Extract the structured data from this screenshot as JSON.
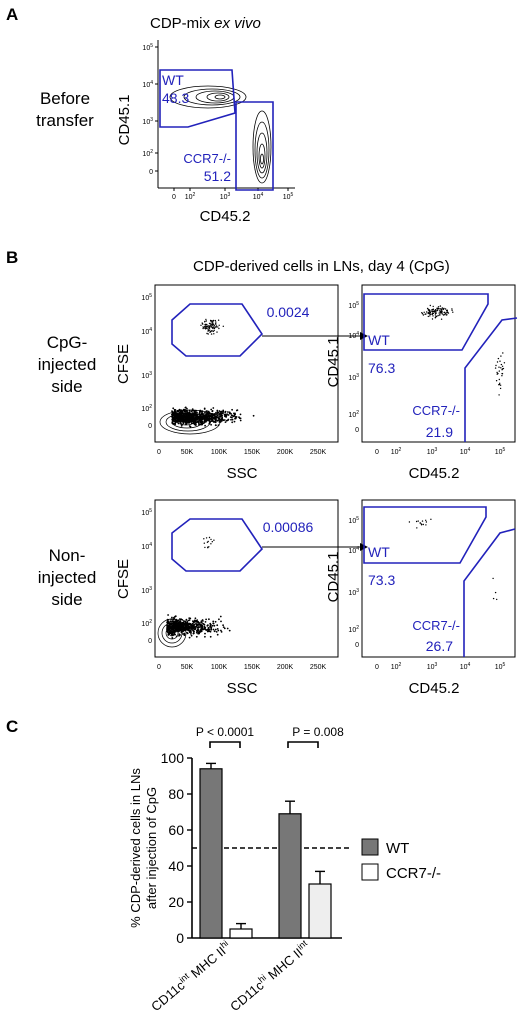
{
  "panelA": {
    "letter": "A",
    "title": "CDP-mix ",
    "title_italic": "ex vivo",
    "row_label_line1": "Before",
    "row_label_line2": "transfer",
    "ylabel": "CD45.1",
    "xlabel": "CD45.2",
    "gate_wt_label": "WT",
    "gate_wt_value": "48.3",
    "gate_ko_label": "CCR7-/-",
    "gate_ko_value": "51.2"
  },
  "panelB": {
    "letter": "B",
    "title": "CDP-derived cells in LNs, day 4 (CpG)",
    "row1_line1": "CpG-",
    "row1_line2": "injected",
    "row1_line3": "side",
    "row2_line1": "Non-",
    "row2_line2": "injected",
    "row2_line3": "side",
    "left_ylabel": "CFSE",
    "left_xlabel": "SSC",
    "right_ylabel": "CD45.1",
    "right_xlabel": "CD45.2",
    "row1_gate_value": "0.0024",
    "row1_wt_label": "WT",
    "row1_wt_value": "76.3",
    "row1_ko_label": "CCR7-/-",
    "row1_ko_value": "21.9",
    "row2_gate_value": "0.00086",
    "row2_wt_label": "WT",
    "row2_wt_value": "73.3",
    "row2_ko_label": "CCR7-/-",
    "row2_ko_value": "26.7"
  },
  "axis_ticks": {
    "log_y": [
      "10^5",
      "10^4",
      "10^3",
      "10^2",
      "0"
    ],
    "log_x": [
      "0",
      "10^2",
      "10^3",
      "10^4",
      "10^5"
    ],
    "ssc_x": [
      "0",
      "50K",
      "100K",
      "150K",
      "200K",
      "250K"
    ]
  },
  "panelC": {
    "letter": "C",
    "pval1": "P < 0.0001",
    "pval2": "P = 0.008",
    "legend_wt": "WT",
    "legend_ko": "CCR7-/-",
    "colors": {
      "wt": "#777777",
      "ko": "#ffffff",
      "ko_light": "#eeeeee"
    }
  },
  "chart_data": {
    "type": "bar",
    "categories": [
      "CD11c^int MHC II^hi",
      "CD11c^hi MHC II^int"
    ],
    "series": [
      {
        "name": "WT",
        "values": [
          94,
          69
        ],
        "errors": [
          3,
          7
        ]
      },
      {
        "name": "CCR7-/-",
        "values": [
          5,
          30
        ],
        "errors": [
          3,
          7
        ]
      }
    ],
    "ylabel": "% CDP-derived cells in LNs after injection of CpG",
    "ylim": [
      0,
      100
    ],
    "yticks": [
      0,
      20,
      40,
      60,
      80,
      100
    ],
    "reference_line": 50,
    "legend": "right"
  }
}
